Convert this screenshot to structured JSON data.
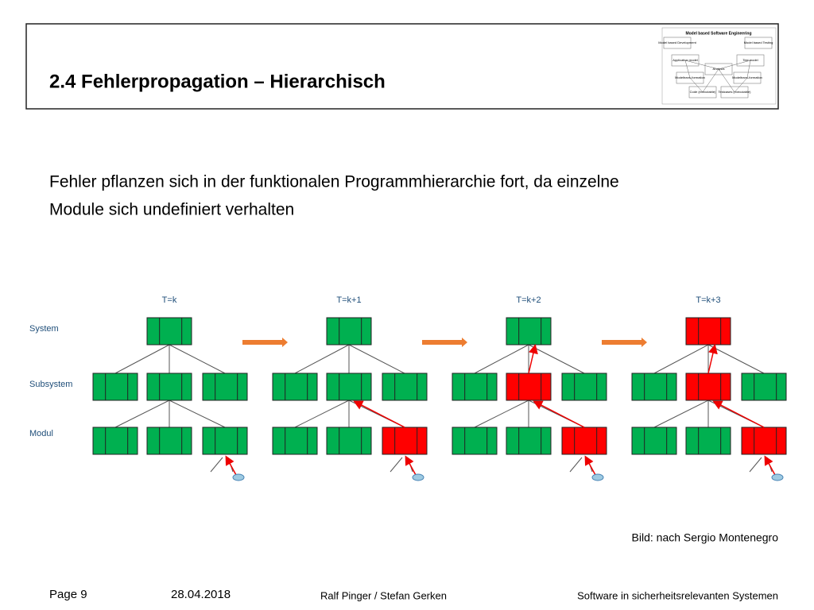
{
  "header": {
    "title": "2.4 Fehlerpropagation – Hierarchisch",
    "logo": {
      "title": "Model based Software Engineering",
      "nodes": [
        "Model based Development",
        "Model based Testing",
        "Application model",
        "Test model",
        "Analysis",
        "Modeltrans-formation",
        "Modeltrans-formation",
        "Code (executable)",
        "Testcases (executable)"
      ]
    }
  },
  "body": {
    "lines": [
      "Fehler pflanzen sich in der funktionalen Programmhierarchie fort, da einzelne",
      "Module sich undefiniert verhalten"
    ]
  },
  "diagram": {
    "levels": [
      "System",
      "Subsystem",
      "Modul"
    ],
    "colors": {
      "ok": "#00b050",
      "error": "#ff0000"
    },
    "panels": [
      {
        "label": "T=k",
        "system": "ok",
        "subsystems": [
          "ok",
          "ok",
          "ok"
        ],
        "modules": [
          "ok",
          "ok",
          "ok"
        ]
      },
      {
        "label": "T=k+1",
        "system": "ok",
        "subsystems": [
          "ok",
          "ok",
          "ok"
        ],
        "modules": [
          "ok",
          "ok",
          "error"
        ]
      },
      {
        "label": "T=k+2",
        "system": "ok",
        "subsystems": [
          "ok",
          "error",
          "ok"
        ],
        "modules": [
          "ok",
          "ok",
          "error"
        ]
      },
      {
        "label": "T=k+3",
        "system": "error",
        "subsystems": [
          "ok",
          "error",
          "ok"
        ],
        "modules": [
          "ok",
          "ok",
          "error"
        ]
      }
    ],
    "caption": "Bild: nach Sergio Montenegro"
  },
  "footer": {
    "page": "Page 9",
    "date": "28.04.2018",
    "authors": "Ralf Pinger / Stefan Gerken",
    "course": "Software in sicherheitsrelevanten Systemen"
  }
}
